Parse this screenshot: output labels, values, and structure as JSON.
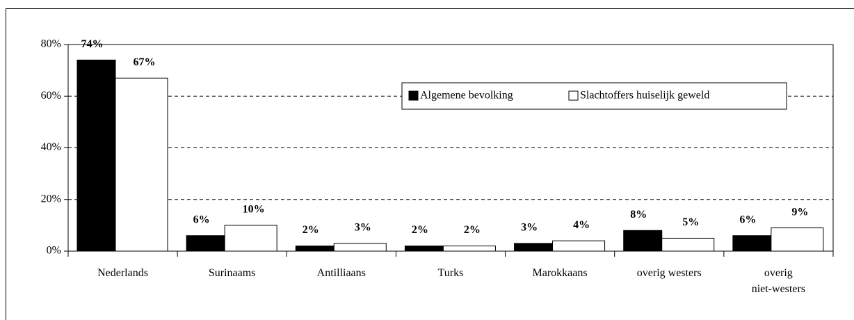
{
  "chart_data": {
    "type": "bar",
    "categories": [
      "Nederlands",
      "Surinaams",
      "Antilliaans",
      "Turks",
      "Marokkaans",
      "overig westers",
      "overig\nniet-westers"
    ],
    "series": [
      {
        "name": "Algemene bevolking",
        "color": "#000000",
        "values": [
          74,
          6,
          2,
          2,
          3,
          8,
          6
        ],
        "value_labels": [
          "74%",
          "6%",
          "2%",
          "2%",
          "3%",
          "8%",
          "6%"
        ]
      },
      {
        "name": "Slachtoffers huiselijk geweld",
        "color": "#ffffff",
        "values": [
          67,
          10,
          3,
          2,
          4,
          5,
          9
        ],
        "value_labels": [
          "67%",
          "10%",
          "3%",
          "2%",
          "4%",
          "5%",
          "9%"
        ]
      }
    ],
    "ylim": [
      0,
      80
    ],
    "yticks": [
      {
        "value": 0,
        "label": "0%"
      },
      {
        "value": 20,
        "label": "20%"
      },
      {
        "value": 40,
        "label": "40%"
      },
      {
        "value": 60,
        "label": "60%"
      },
      {
        "value": 80,
        "label": "80%"
      }
    ],
    "grid": true,
    "legend": "upper right"
  }
}
